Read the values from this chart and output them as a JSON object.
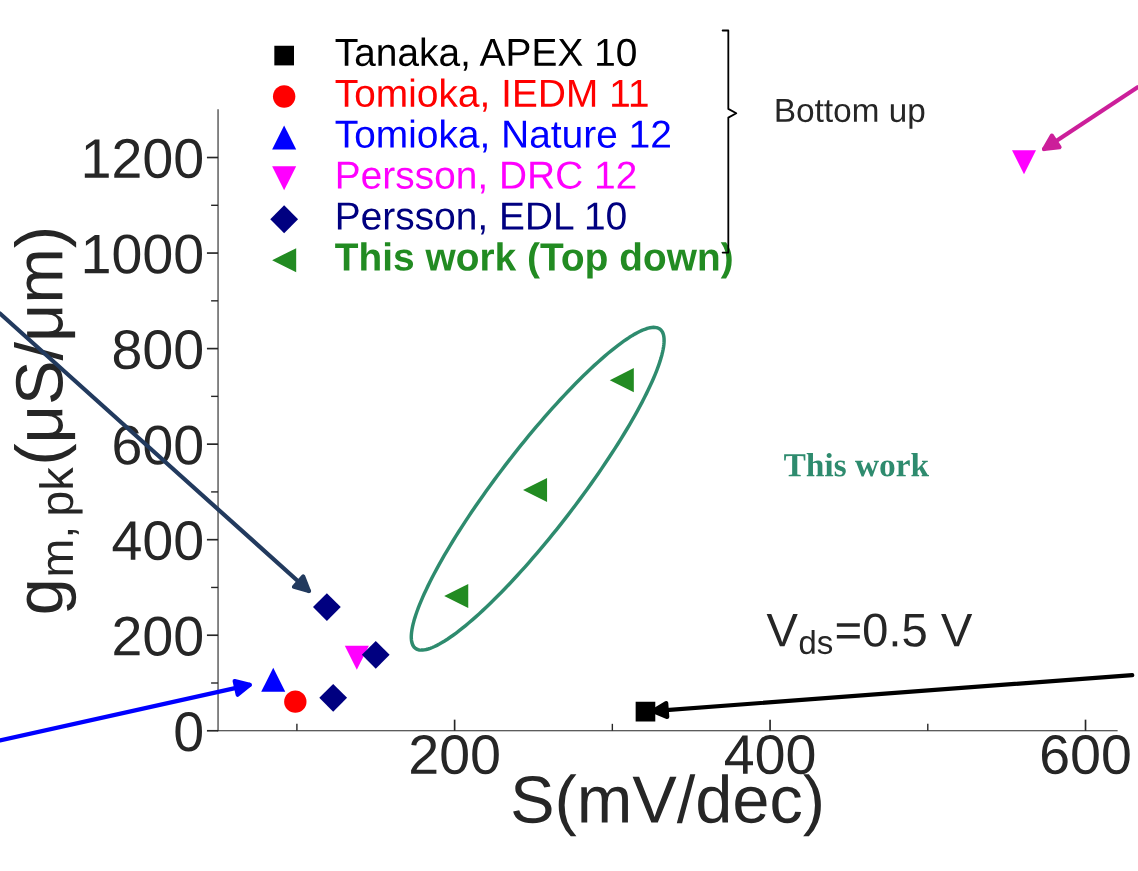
{
  "chart_data": {
    "type": "scatter",
    "xlabel": "S(mV/dec)",
    "ylabel": "g$_{m,pk}$(μS/μm)",
    "xlim": [
      50,
      620
    ],
    "xticks": [
      200,
      400,
      600
    ],
    "ylim": [
      0,
      1300
    ],
    "yticks": [
      0,
      200,
      400,
      600,
      800,
      1000,
      1200
    ],
    "grid": false,
    "legend": "top left",
    "series": [
      {
        "name": "Tanaka, APEX 10",
        "color": "#000000",
        "marker": "square",
        "x": [
          321
        ],
        "values": [
          40
        ]
      },
      {
        "name": "Tomioka, IEDM 11",
        "color": "#ff0000",
        "marker": "circle",
        "x": [
          99
        ],
        "values": [
          61
        ]
      },
      {
        "name": "Tomioka, Nature 12",
        "color": "#0000ff",
        "marker": "triangle",
        "x": [
          85
        ],
        "values": [
          107
        ]
      },
      {
        "name": "Persson, DRC 12",
        "color": "#ff00ff",
        "marker": "triangle_down",
        "x": [
          561,
          138
        ],
        "values": [
          1190,
          153
        ]
      },
      {
        "name": "Persson, EDL 10",
        "color": "#000080",
        "marker": "diamond",
        "x": [
          119,
          150,
          123
        ],
        "values": [
          259,
          159,
          69
        ]
      },
      {
        "name": "This work (Top down)",
        "color": "#228b22",
        "marker": "triangle_left",
        "x": [
          201,
          251,
          306
        ],
        "values": [
          282,
          504,
          734
        ]
      }
    ],
    "annotations": [
      {
        "text": "V$_{ds}$=0.5 V",
        "x": 321,
        "y": 40
      },
      "This work",
      "Bottom up"
    ]
  }
}
